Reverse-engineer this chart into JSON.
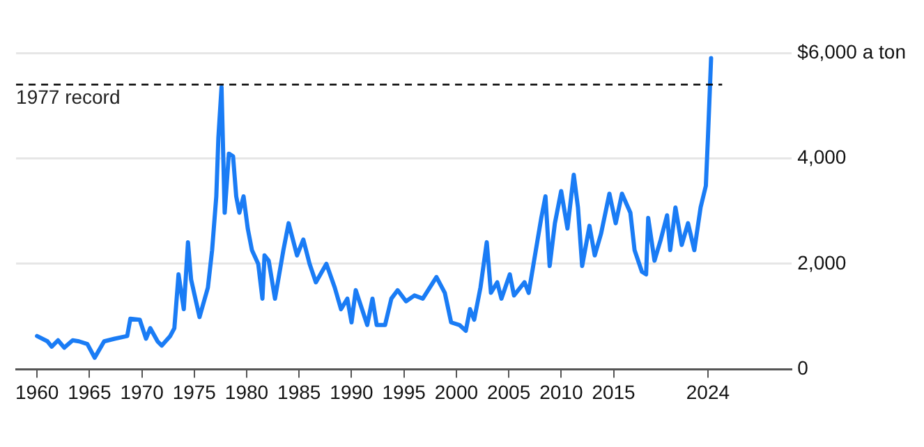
{
  "chart_data": {
    "type": "line",
    "x": [
      1960,
      1961,
      1961.4,
      1962,
      1962.6,
      1963.4,
      1964,
      1964.8,
      1965.5,
      1966.4,
      1967.4,
      1968.6,
      1968.9,
      1969.8,
      1970.4,
      1970.8,
      1971.5,
      1971.9,
      1972.7,
      1973.1,
      1973.5,
      1974,
      1974.4,
      1974.7,
      1975.5,
      1976.3,
      1976.7,
      1977.1,
      1977.3,
      1977.6,
      1977.9,
      1978.3,
      1978.7,
      1979,
      1979.3,
      1979.7,
      1980.1,
      1980.5,
      1981.1,
      1981.5,
      1981.7,
      1982.1,
      1982.7,
      1983.5,
      1984,
      1984.8,
      1985.4,
      1986,
      1986.6,
      1987.6,
      1988.4,
      1989,
      1989.6,
      1990,
      1990.4,
      1991,
      1991.5,
      1992,
      1992.4,
      1993.2,
      1993.8,
      1994.4,
      1995.2,
      1996,
      1996.8,
      1998.1,
      1998.9,
      1999.5,
      2000.3,
      2000.9,
      2001.3,
      2001.7,
      2002.3,
      2002.9,
      2003.3,
      2003.9,
      2004.3,
      2005.1,
      2005.5,
      2006.5,
      2006.9,
      2007.5,
      2008.1,
      2008.5,
      2008.9,
      2009.4,
      2010,
      2010.6,
      2011.2,
      2011.6,
      2012,
      2012.7,
      2013.2,
      2013.8,
      2014.6,
      2015.2,
      2015.8,
      2016.6,
      2017,
      2017.7,
      2018.1,
      2018.3,
      2018.9,
      2019.5,
      2020.1,
      2020.4,
      2020.9,
      2021.5,
      2022.1,
      2022.7,
      2023.3,
      2023.8,
      2024,
      2024.3
    ],
    "series": [
      {
        "color": "#1a7cf5",
        "values": [
          630,
          530,
          430,
          550,
          410,
          550,
          530,
          480,
          220,
          530,
          580,
          630,
          960,
          940,
          580,
          780,
          530,
          450,
          630,
          780,
          1800,
          1140,
          2410,
          1700,
          990,
          1550,
          2260,
          3280,
          4400,
          5350,
          2970,
          4090,
          4040,
          3280,
          2970,
          3280,
          2670,
          2260,
          2000,
          1340,
          2160,
          2060,
          1340,
          2260,
          2770,
          2160,
          2460,
          2000,
          1650,
          2000,
          1550,
          1140,
          1340,
          890,
          1500,
          1140,
          840,
          1340,
          840,
          840,
          1340,
          1500,
          1290,
          1400,
          1340,
          1750,
          1450,
          890,
          840,
          730,
          1140,
          940,
          1550,
          2410,
          1450,
          1650,
          1340,
          1800,
          1400,
          1650,
          1450,
          2160,
          2870,
          3280,
          1960,
          2770,
          3380,
          2670,
          3690,
          3070,
          1960,
          2720,
          2160,
          2570,
          3330,
          2770,
          3330,
          2970,
          2260,
          1850,
          1800,
          2870,
          2060,
          2460,
          2920,
          2260,
          3070,
          2360,
          2770,
          2260,
          3070,
          3480,
          4400,
          5900
        ]
      }
    ],
    "xlim": [
      1958,
      2032
    ],
    "xticks": [
      1960,
      1965,
      1970,
      1975,
      1980,
      1985,
      1990,
      1995,
      2000,
      2005,
      2010,
      2015,
      2024
    ],
    "ylim": [
      0,
      6000
    ],
    "yticks": [
      0,
      {
        "value": 2000,
        "label": "2,000"
      },
      {
        "value": 4000,
        "label": "4,000"
      },
      {
        "value": 6000,
        "label": "$6,000 a ton"
      }
    ],
    "grid": "y",
    "legend": false,
    "marker": "none",
    "line_style": "solid",
    "ref_lines": [
      {
        "axis": "y",
        "value": 5400,
        "label": "1977 record",
        "color": "#000000",
        "line_style": "dashed"
      }
    ]
  }
}
